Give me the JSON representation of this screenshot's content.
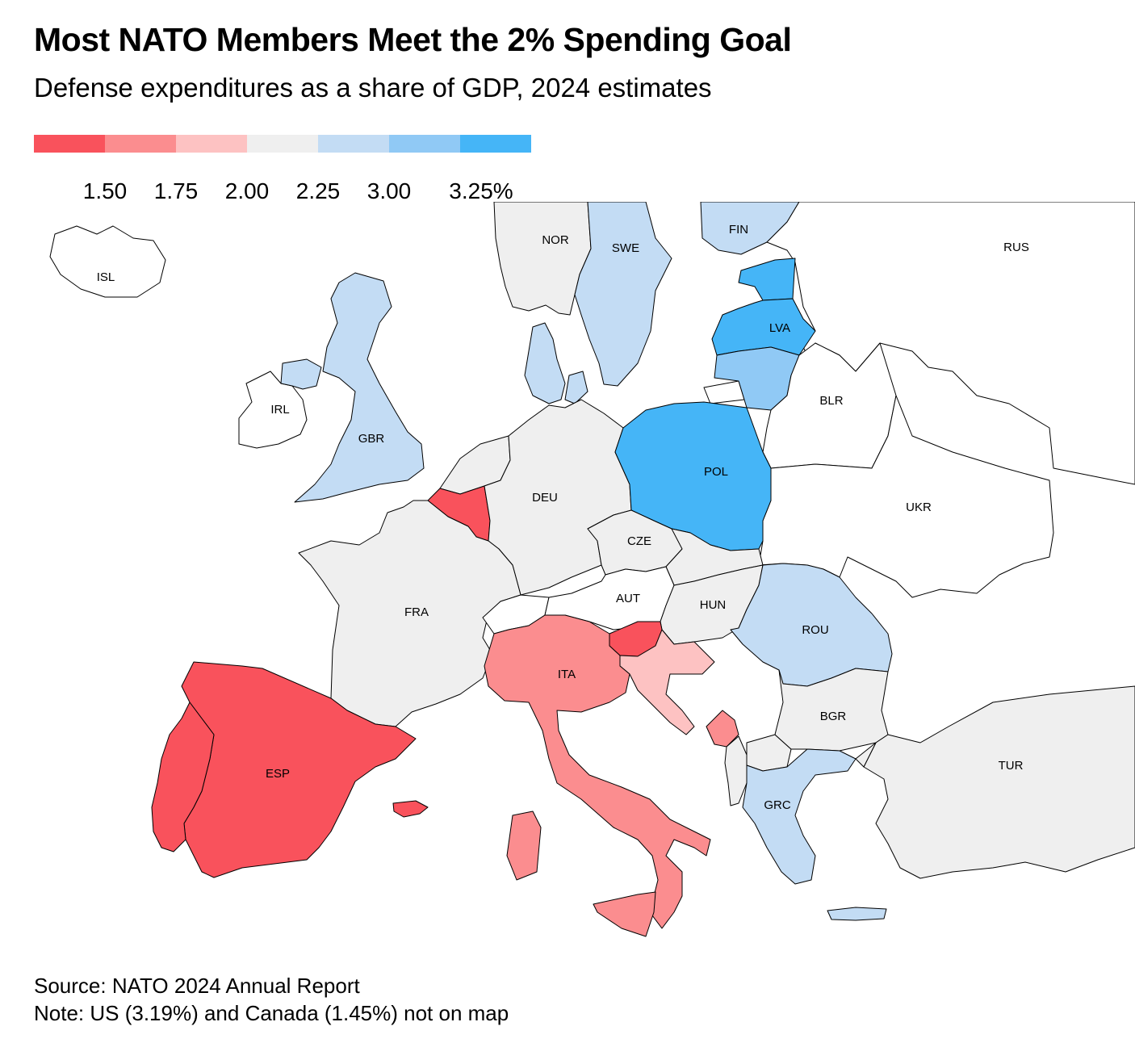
{
  "title": "Most NATO Members Meet the 2% Spending Goal",
  "subtitle": "Defense expenditures as a share of GDP, 2024 estimates",
  "legend": {
    "colors": [
      "#f9525c",
      "#fb8d8f",
      "#fdc2c2",
      "#efefef",
      "#c3dcf4",
      "#90c9f5",
      "#45b5f7"
    ],
    "ticks": [
      "1.50",
      "1.75",
      "2.00",
      "2.25",
      "3.00",
      "3.25%"
    ]
  },
  "colors": {
    "non_member": "#ffffff",
    "sea": "#ffffff",
    "border": "#000000"
  },
  "countries": [
    {
      "code": "ISL",
      "label": "ISL",
      "bin": "none"
    },
    {
      "code": "NOR",
      "label": "NOR",
      "bin": 3
    },
    {
      "code": "SWE",
      "label": "SWE",
      "bin": 4
    },
    {
      "code": "FIN",
      "label": "FIN",
      "bin": 4
    },
    {
      "code": "RUS",
      "label": "RUS",
      "bin": "none"
    },
    {
      "code": "LVA",
      "label": "LVA",
      "bin": 6
    },
    {
      "code": "EST",
      "label": "",
      "bin": 6
    },
    {
      "code": "LTU",
      "label": "",
      "bin": 5
    },
    {
      "code": "IRL",
      "label": "IRL",
      "bin": "none"
    },
    {
      "code": "GBR",
      "label": "GBR",
      "bin": 4
    },
    {
      "code": "BLR",
      "label": "BLR",
      "bin": "none"
    },
    {
      "code": "POL",
      "label": "POL",
      "bin": 6
    },
    {
      "code": "DEU",
      "label": "DEU",
      "bin": 3
    },
    {
      "code": "NLD",
      "label": "",
      "bin": 3
    },
    {
      "code": "DNK",
      "label": "",
      "bin": 4
    },
    {
      "code": "BEL",
      "label": "",
      "bin": 0
    },
    {
      "code": "UKR",
      "label": "UKR",
      "bin": "none"
    },
    {
      "code": "CZE",
      "label": "CZE",
      "bin": 3
    },
    {
      "code": "SVK",
      "label": "",
      "bin": 3
    },
    {
      "code": "FRA",
      "label": "FRA",
      "bin": 3
    },
    {
      "code": "AUT",
      "label": "AUT",
      "bin": "none"
    },
    {
      "code": "CHE",
      "label": "",
      "bin": "none"
    },
    {
      "code": "HUN",
      "label": "HUN",
      "bin": 3
    },
    {
      "code": "ROU",
      "label": "ROU",
      "bin": 4
    },
    {
      "code": "SVN",
      "label": "",
      "bin": 0
    },
    {
      "code": "HRV",
      "label": "",
      "bin": 2
    },
    {
      "code": "ITA",
      "label": "ITA",
      "bin": 1
    },
    {
      "code": "BGR",
      "label": "BGR",
      "bin": 3
    },
    {
      "code": "MNE",
      "label": "",
      "bin": 1
    },
    {
      "code": "ALB",
      "label": "",
      "bin": 3
    },
    {
      "code": "MKD",
      "label": "",
      "bin": 3
    },
    {
      "code": "ESP",
      "label": "ESP",
      "bin": 0
    },
    {
      "code": "PRT",
      "label": "",
      "bin": 0
    },
    {
      "code": "GRC",
      "label": "GRC",
      "bin": 4
    },
    {
      "code": "TUR",
      "label": "TUR",
      "bin": 3
    }
  ],
  "source": "Source: NATO 2024 Annual Report",
  "note": "Note: US (3.19%) and Canada (1.45%) not on map"
}
